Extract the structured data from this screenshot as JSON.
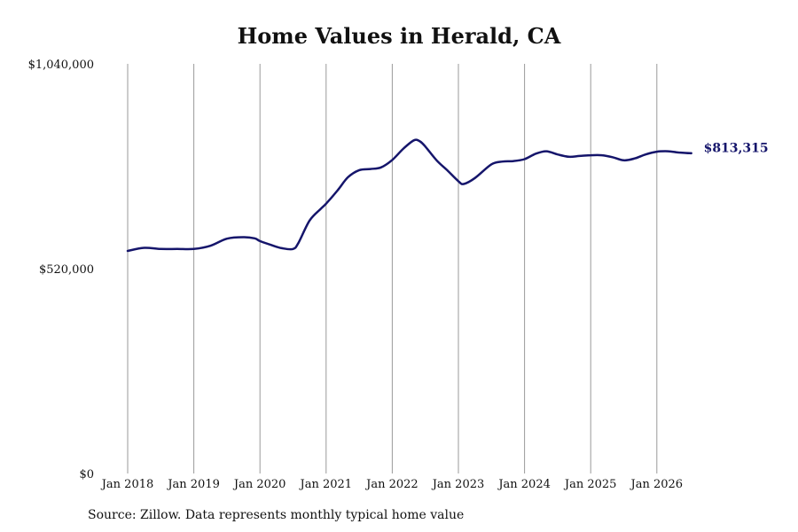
{
  "chart_data": {
    "type": "line",
    "title": "Home Values in Herald, CA",
    "source_note": "Source: Zillow. Data represents monthly typical home value",
    "end_label": "$813,315",
    "ylim": [
      0,
      1040000
    ],
    "y_ticks": [
      0,
      520000,
      1040000
    ],
    "y_tick_labels": [
      "$0",
      "$520,000",
      "$1,040,000"
    ],
    "x_ticks": [
      2018,
      2019,
      2020,
      2021,
      2022,
      2023,
      2024,
      2025,
      2026
    ],
    "x_tick_labels": [
      "Jan 2018",
      "Jan 2019",
      "Jan 2020",
      "Jan 2021",
      "Jan 2022",
      "Jan 2023",
      "Jan 2024",
      "Jan 2025",
      "Jan 2026"
    ],
    "xlim": [
      2018,
      2026.6
    ],
    "grid": "vertical",
    "line_color": "#15156b",
    "grid_color": "#9a9a9a",
    "series": [
      {
        "x": [
          2018.0,
          2018.25,
          2018.5,
          2018.75,
          2019.0,
          2019.25,
          2019.5,
          2019.75,
          2019.92,
          2020.0,
          2020.17,
          2020.33,
          2020.5,
          2020.58,
          2020.75,
          2020.92,
          2021.0,
          2021.17,
          2021.33,
          2021.5,
          2021.67,
          2021.83,
          2022.0,
          2022.17,
          2022.33,
          2022.42,
          2022.5,
          2022.67,
          2022.83,
          2023.0,
          2023.08,
          2023.25,
          2023.5,
          2023.67,
          2023.83,
          2024.0,
          2024.17,
          2024.33,
          2024.5,
          2024.67,
          2024.83,
          2025.0,
          2025.17,
          2025.33,
          2025.5,
          2025.67,
          2025.83,
          2026.0,
          2026.17,
          2026.33,
          2026.5,
          2026.52
        ],
        "y": [
          565000,
          573000,
          570000,
          570000,
          570000,
          578000,
          596000,
          600000,
          597000,
          590000,
          580000,
          572000,
          570000,
          585000,
          642000,
          672000,
          685000,
          718000,
          752000,
          770000,
          773000,
          777000,
          796000,
          825000,
          846000,
          843000,
          830000,
          795000,
          770000,
          742000,
          735000,
          750000,
          785000,
          792000,
          793000,
          798000,
          812000,
          818000,
          810000,
          804000,
          806000,
          808000,
          808000,
          803000,
          795000,
          800000,
          810000,
          817000,
          818000,
          815000,
          813000,
          813315
        ]
      }
    ]
  }
}
